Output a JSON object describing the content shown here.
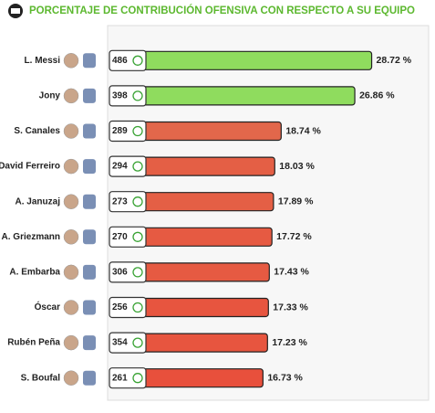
{
  "chart_data": {
    "type": "bar",
    "orientation": "horizontal",
    "title": "PORCENTAJE DE CONTRIBUCIÓN OFENSIVA CON RESPECTO A SU EQUIPO",
    "categories": [
      "L. Messi",
      "Jony",
      "S. Canales",
      "David Ferreiro",
      "A. Januzaj",
      "A. Griezmann",
      "A. Embarba",
      "Óscar",
      "Rubén Peña",
      "S. Boufal"
    ],
    "values": [
      28.72,
      26.86,
      18.74,
      18.03,
      17.89,
      17.72,
      17.43,
      17.33,
      17.23,
      16.73
    ],
    "value_labels": [
      "28.72 %",
      "26.86 %",
      "18.74 %",
      "18.03 %",
      "17.89 %",
      "17.72 %",
      "17.43 %",
      "17.33 %",
      "17.23 %",
      "16.73 %"
    ],
    "counts": [
      486,
      398,
      289,
      294,
      273,
      270,
      306,
      256,
      354,
      261
    ],
    "colors": [
      "#8fdc5e",
      "#8fdc5e",
      "#e2674b",
      "#e45f45",
      "#e45f45",
      "#e65a42",
      "#e65a42",
      "#e7553f",
      "#e7553f",
      "#e8503c"
    ],
    "xlim": [
      0,
      35
    ]
  }
}
